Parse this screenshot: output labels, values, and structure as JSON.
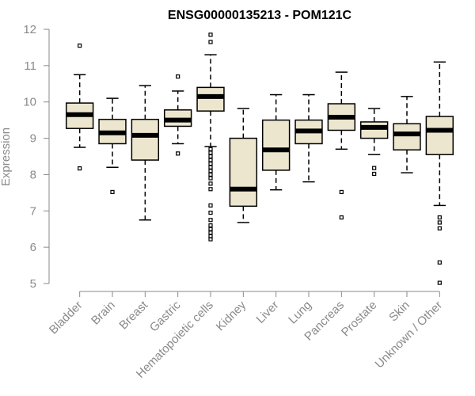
{
  "chart_data": {
    "type": "boxplot",
    "title": "ENSG00000135213 - POM121C",
    "xlabel": "",
    "ylabel": "Expression",
    "ylim": [
      5,
      12
    ],
    "yticks": [
      5,
      6,
      7,
      8,
      9,
      10,
      11,
      12
    ],
    "grid": false,
    "legend": "none",
    "colors": {
      "box_fill": "#ede6cf",
      "stroke": "#000000",
      "axis": "#8a8a8a"
    },
    "categories": [
      "Bladder",
      "Brain",
      "Breast",
      "Gastric",
      "Hematopoietic cells",
      "Kidney",
      "Liver",
      "Lung",
      "Pancreas",
      "Prostate",
      "Skin",
      "Unknown / Other"
    ],
    "boxes": [
      {
        "whisker_low": 8.75,
        "q1": 9.27,
        "median": 9.65,
        "q3": 9.97,
        "whisker_high": 10.75,
        "outliers": [
          8.17,
          11.55
        ]
      },
      {
        "whisker_low": 8.2,
        "q1": 8.85,
        "median": 9.15,
        "q3": 9.52,
        "whisker_high": 10.1,
        "outliers": [
          7.52
        ]
      },
      {
        "whisker_low": 6.75,
        "q1": 8.4,
        "median": 9.08,
        "q3": 9.52,
        "whisker_high": 10.45,
        "outliers": []
      },
      {
        "whisker_low": 8.85,
        "q1": 9.33,
        "median": 9.5,
        "q3": 9.78,
        "whisker_high": 10.3,
        "outliers": [
          8.58,
          10.7
        ]
      },
      {
        "whisker_low": 8.77,
        "q1": 9.75,
        "median": 10.15,
        "q3": 10.4,
        "whisker_high": 11.3,
        "outliers": [
          11.65,
          11.85,
          8.7,
          8.6,
          8.5,
          8.4,
          8.3,
          8.2,
          8.1,
          8.0,
          7.9,
          7.75,
          7.6,
          7.15,
          6.95,
          6.75,
          6.6,
          6.5,
          6.4,
          6.3,
          6.22
        ]
      },
      {
        "whisker_low": 6.68,
        "q1": 7.13,
        "median": 7.6,
        "q3": 9.0,
        "whisker_high": 9.82,
        "outliers": []
      },
      {
        "whisker_low": 7.58,
        "q1": 8.12,
        "median": 8.68,
        "q3": 9.5,
        "whisker_high": 10.2,
        "outliers": []
      },
      {
        "whisker_low": 7.8,
        "q1": 8.85,
        "median": 9.2,
        "q3": 9.5,
        "whisker_high": 10.2,
        "outliers": []
      },
      {
        "whisker_low": 8.7,
        "q1": 9.22,
        "median": 9.58,
        "q3": 9.95,
        "whisker_high": 10.82,
        "outliers": [
          7.52,
          6.82
        ]
      },
      {
        "whisker_low": 8.55,
        "q1": 9.0,
        "median": 9.3,
        "q3": 9.45,
        "whisker_high": 9.82,
        "outliers": [
          8.18,
          8.02
        ]
      },
      {
        "whisker_low": 8.05,
        "q1": 8.68,
        "median": 9.12,
        "q3": 9.4,
        "whisker_high": 10.15,
        "outliers": []
      },
      {
        "whisker_low": 7.15,
        "q1": 8.55,
        "median": 9.22,
        "q3": 9.6,
        "whisker_high": 11.1,
        "outliers": [
          6.82,
          6.68,
          6.52,
          5.58,
          5.02
        ]
      }
    ]
  }
}
